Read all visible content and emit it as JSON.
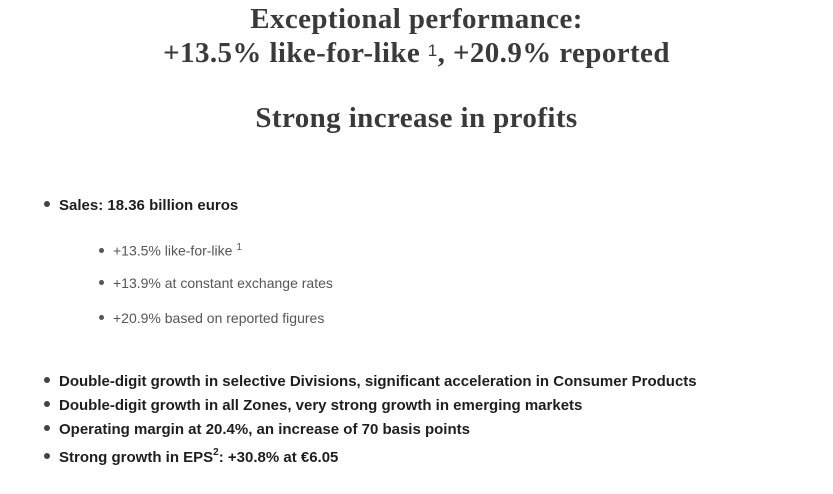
{
  "header": {
    "title_line1": "Exceptional performance:",
    "title_line2_main": "+13.5% like-for-like ",
    "title_line2_sup": "1",
    "title_line2_rest": ", +20.9% reported",
    "subtitle": "Strong increase in profits"
  },
  "bullets": {
    "sales": "Sales: 18.36 billion euros",
    "sub_items": [
      {
        "text": "+13.5% like-for-like ",
        "sup": "1"
      },
      {
        "text": "+13.9% at constant exchange rates"
      },
      {
        "text": "+20.9% based on reported figures"
      }
    ],
    "highlights": [
      {
        "text": "Double-digit growth in selective Divisions, significant acceleration in Consumer Products"
      },
      {
        "text": "Double-digit growth in all Zones, very strong growth in emerging markets"
      },
      {
        "text": "Operating margin at 20.4%, an increase of 70 basis points"
      },
      {
        "text_pre": "Strong growth in EPS",
        "sup": "2",
        "text_post": ": +30.8% at €6.05"
      }
    ]
  }
}
